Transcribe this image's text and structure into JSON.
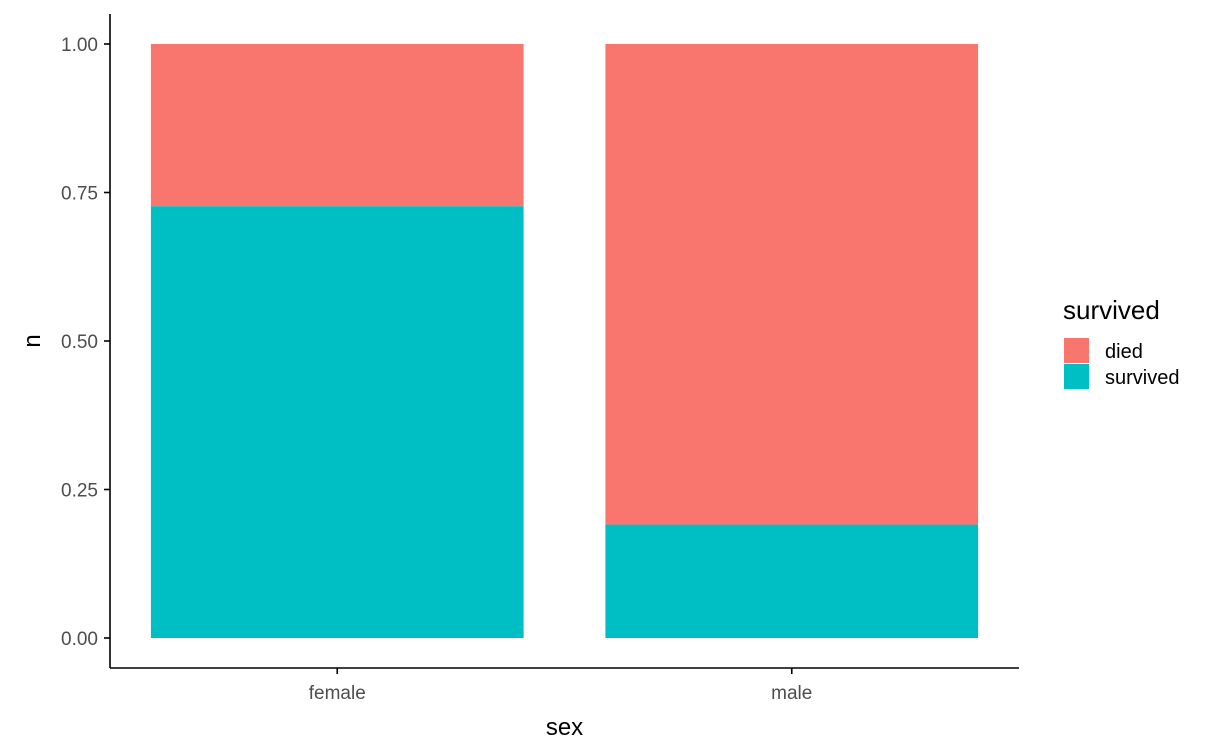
{
  "chart_data": {
    "type": "bar",
    "stacked": true,
    "categories": [
      "female",
      "male"
    ],
    "series": [
      {
        "name": "survived",
        "values": [
          0.727,
          0.191
        ],
        "color": "#00BFC4"
      },
      {
        "name": "died",
        "values": [
          0.273,
          0.809
        ],
        "color": "#F8766D"
      }
    ],
    "xlabel": "sex",
    "ylabel": "n",
    "ylim": [
      0,
      1
    ],
    "yticks": [
      0,
      0.25,
      0.5,
      0.75,
      1
    ],
    "ytick_labels": [
      "0.00",
      "0.25",
      "0.50",
      "0.75",
      "1.00"
    ],
    "grid": false,
    "legend": {
      "title": "survived",
      "position": "right",
      "entries": [
        {
          "label": "died",
          "color": "#F8766D"
        },
        {
          "label": "survived",
          "color": "#00BFC4"
        }
      ]
    }
  }
}
